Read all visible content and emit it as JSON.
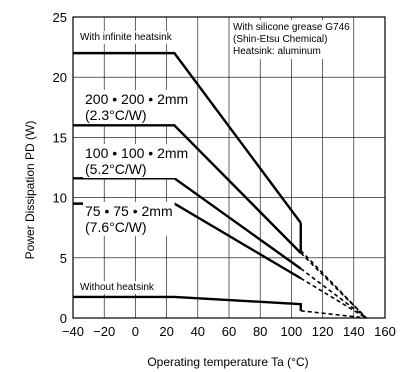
{
  "chart_data": {
    "type": "line",
    "xlabel": "Operating temperature    Ta (°C)",
    "ylabel": "Power Dissipation    PD (W)",
    "xlim": [
      -40,
      160
    ],
    "ylim": [
      0,
      25
    ],
    "xticks": [
      -40,
      -20,
      0,
      20,
      40,
      60,
      80,
      100,
      120,
      140,
      160
    ],
    "yticks": [
      0,
      5,
      10,
      15,
      20,
      25
    ],
    "grid": true,
    "note": [
      "With silicone grease G746",
      "(Shin-Etsu Chemical)",
      "Heatsink: aluminum"
    ],
    "series": [
      {
        "name": "With infinite heatsink",
        "label_lines": [
          "With infinite heatsink"
        ],
        "x": [
          -40,
          25,
          106
        ],
        "y": [
          22,
          22,
          7.9
        ],
        "drop_to": 5.6,
        "dash_to": [
          148,
          0
        ]
      },
      {
        "name": "200 • 200 • 2mm (2.3°C/W)",
        "label_lines": [
          "200 • 200 • 2mm",
          "(2.3°C/W)"
        ],
        "x": [
          -40,
          25,
          106
        ],
        "y": [
          16,
          16,
          5.4
        ],
        "dash_to": [
          148,
          0
        ]
      },
      {
        "name": "100 • 100 • 2mm (5.2°C/W)",
        "label_lines": [
          "100 • 100 • 2mm",
          "(5.2°C/W)"
        ],
        "x": [
          -40,
          25,
          106
        ],
        "y": [
          11.6,
          11.6,
          4.1
        ],
        "dash_to": [
          148,
          0
        ]
      },
      {
        "name": "75 • 75 • 2mm (7.6°C/W)",
        "label_lines": [
          "75 • 75 • 2mm",
          "(7.6°C/W)"
        ],
        "x": [
          -40,
          25,
          106
        ],
        "y": [
          9.5,
          9.5,
          3.3
        ],
        "dash_to": [
          148,
          0
        ]
      },
      {
        "name": "Without heatsink",
        "label_lines": [
          "Without heatsink"
        ],
        "x": [
          -40,
          25,
          106,
          106
        ],
        "y": [
          1.75,
          1.75,
          1.15,
          0.6
        ],
        "dash_to": [
          148,
          0
        ]
      }
    ]
  }
}
